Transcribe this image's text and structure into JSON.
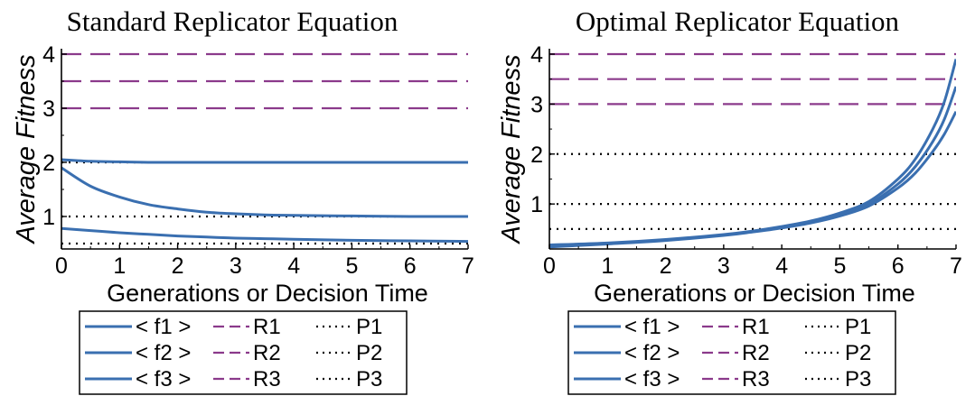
{
  "colors": {
    "fitness": "#3a6fb0",
    "R": "#8b3a8b",
    "P": "#000000"
  },
  "legend_entries": [
    {
      "label": "< f1 >",
      "style": "solid-blue"
    },
    {
      "label": "R1",
      "style": "dashed-purple"
    },
    {
      "label": "P1",
      "style": "dotted-black"
    },
    {
      "label": "< f2 >",
      "style": "solid-blue"
    },
    {
      "label": "R2",
      "style": "dashed-purple"
    },
    {
      "label": "P2",
      "style": "dotted-black"
    },
    {
      "label": "< f3 >",
      "style": "solid-blue"
    },
    {
      "label": "R3",
      "style": "dashed-purple"
    },
    {
      "label": "P3",
      "style": "dotted-black"
    }
  ],
  "chart_data": [
    {
      "type": "line",
      "title": "Standard Replicator Equation",
      "xlabel": "Generations or Decision Time",
      "ylabel": "Average Fitness",
      "xlim": [
        0,
        7
      ],
      "ylim": [
        0.4,
        4
      ],
      "xticks": [
        0,
        1,
        2,
        3,
        4,
        5,
        6,
        7
      ],
      "yticks": [
        1,
        2,
        3,
        4
      ],
      "grid": false,
      "legend_position": "below",
      "series": [
        {
          "name": "< f1 >",
          "x": [
            0,
            0.5,
            1,
            1.5,
            2,
            2.5,
            3,
            3.5,
            4,
            5,
            6,
            7
          ],
          "y": [
            2.05,
            2.02,
            2.01,
            2.0,
            2.0,
            2.0,
            2.0,
            2.0,
            2.0,
            2.0,
            2.0,
            2.0
          ]
        },
        {
          "name": "< f2 >",
          "x": [
            0,
            0.5,
            1,
            1.5,
            2,
            2.5,
            3,
            3.5,
            4,
            5,
            6,
            7
          ],
          "y": [
            1.9,
            1.56,
            1.36,
            1.22,
            1.14,
            1.08,
            1.05,
            1.03,
            1.02,
            1.01,
            1.0,
            1.0
          ]
        },
        {
          "name": "< f3 >",
          "x": [
            0,
            0.5,
            1,
            1.5,
            2,
            2.5,
            3,
            3.5,
            4,
            5,
            6,
            7
          ],
          "y": [
            0.78,
            0.74,
            0.7,
            0.67,
            0.64,
            0.62,
            0.6,
            0.59,
            0.58,
            0.56,
            0.55,
            0.54
          ]
        },
        {
          "name": "R1",
          "y_const": 4.0
        },
        {
          "name": "R2",
          "y_const": 3.5
        },
        {
          "name": "R3",
          "y_const": 3.0
        },
        {
          "name": "P1",
          "y_const": 2.0
        },
        {
          "name": "P2",
          "y_const": 1.0
        },
        {
          "name": "P3",
          "y_const": 0.5
        }
      ]
    },
    {
      "type": "line",
      "title": "Optimal Replicator Equation",
      "xlabel": "Generations or Decision Time",
      "ylabel": "Average Fitness",
      "xlim": [
        0,
        7
      ],
      "ylim": [
        0.1,
        4
      ],
      "xticks": [
        0,
        1,
        2,
        3,
        4,
        5,
        6,
        7
      ],
      "yticks": [
        1,
        2,
        3,
        4
      ],
      "grid": false,
      "legend_position": "below",
      "series": [
        {
          "name": "< f1 >",
          "x": [
            0,
            1,
            2,
            3,
            3.5,
            4,
            4.5,
            5,
            5.5,
            6,
            6.3,
            6.6,
            6.8,
            7
          ],
          "y": [
            0.18,
            0.22,
            0.29,
            0.39,
            0.46,
            0.55,
            0.66,
            0.82,
            1.05,
            1.5,
            1.9,
            2.5,
            3.05,
            3.9
          ]
        },
        {
          "name": "< f2 >",
          "x": [
            0,
            1,
            2,
            3,
            3.5,
            4,
            4.5,
            5,
            5.5,
            6,
            6.3,
            6.6,
            6.8,
            7
          ],
          "y": [
            0.16,
            0.21,
            0.28,
            0.38,
            0.45,
            0.53,
            0.64,
            0.79,
            1.0,
            1.4,
            1.75,
            2.25,
            2.7,
            3.35
          ]
        },
        {
          "name": "< f3 >",
          "x": [
            0,
            1,
            2,
            3,
            3.5,
            4,
            4.5,
            5,
            5.5,
            6,
            6.3,
            6.6,
            6.8,
            7
          ],
          "y": [
            0.14,
            0.2,
            0.27,
            0.37,
            0.44,
            0.52,
            0.62,
            0.76,
            0.96,
            1.32,
            1.62,
            2.05,
            2.4,
            2.85
          ]
        },
        {
          "name": "R1",
          "y_const": 4.0
        },
        {
          "name": "R2",
          "y_const": 3.5
        },
        {
          "name": "R3",
          "y_const": 3.0
        },
        {
          "name": "P1",
          "y_const": 2.0
        },
        {
          "name": "P2",
          "y_const": 1.0
        },
        {
          "name": "P3",
          "y_const": 0.5
        }
      ]
    }
  ]
}
